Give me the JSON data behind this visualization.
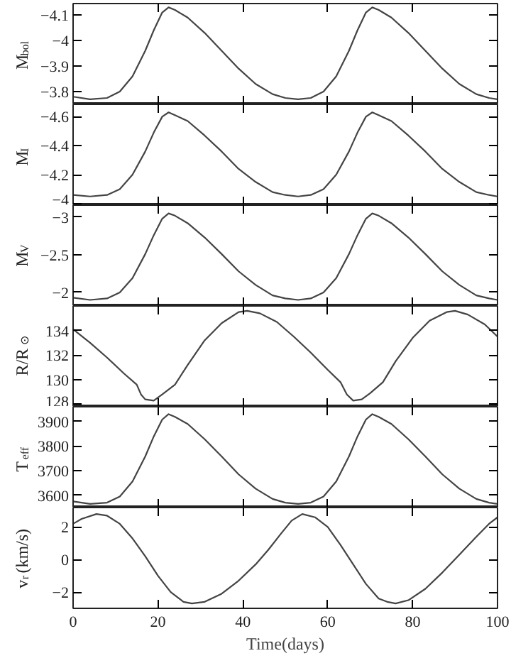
{
  "chart_data": [
    {
      "type": "line",
      "ylabel": "M$_{bol}$",
      "xlim": [
        0,
        100
      ],
      "xticks": [
        0,
        20,
        40,
        60,
        80,
        100
      ],
      "ylim": [
        -3.75,
        -4.145
      ],
      "yticks": [
        -4.1,
        -4,
        -3.9,
        -3.8
      ],
      "tick_labels": "y",
      "x": [
        0,
        4,
        8,
        11,
        14,
        17,
        19,
        21,
        22.5,
        24,
        27,
        31,
        35,
        39,
        43,
        47,
        50,
        53,
        56,
        59,
        62,
        65,
        67,
        69,
        70.5,
        72,
        75,
        79,
        83,
        87,
        91,
        95,
        98,
        100
      ],
      "series": [
        {
          "color": "#444444",
          "values": [
            -3.78,
            -3.77,
            -3.775,
            -3.8,
            -3.86,
            -3.96,
            -4.04,
            -4.11,
            -4.13,
            -4.12,
            -4.09,
            -4.03,
            -3.96,
            -3.89,
            -3.83,
            -3.79,
            -3.775,
            -3.77,
            -3.775,
            -3.8,
            -3.86,
            -3.96,
            -4.04,
            -4.11,
            -4.13,
            -4.12,
            -4.09,
            -4.03,
            -3.96,
            -3.89,
            -3.83,
            -3.79,
            -3.775,
            -3.77
          ]
        }
      ]
    },
    {
      "type": "line",
      "ylabel": "M$_{I}$",
      "xlim": [
        0,
        100
      ],
      "xticks": [
        0,
        20,
        40,
        60,
        80,
        100
      ],
      "ylim": [
        -3.99,
        -4.685
      ],
      "yticks": [
        -4.6,
        -4.4,
        -4.2,
        -4
      ],
      "tick_labels": "y",
      "x": [
        0,
        4,
        8,
        11,
        14,
        17,
        19,
        21,
        22.5,
        24,
        27,
        31,
        35,
        39,
        43,
        47,
        50,
        53,
        56,
        59,
        62,
        65,
        67,
        69,
        70.5,
        72,
        75,
        79,
        83,
        87,
        91,
        95,
        98,
        100
      ],
      "series": [
        {
          "color": "#444444",
          "values": [
            -4.06,
            -4.05,
            -4.06,
            -4.1,
            -4.2,
            -4.36,
            -4.49,
            -4.6,
            -4.63,
            -4.61,
            -4.57,
            -4.47,
            -4.36,
            -4.24,
            -4.15,
            -4.08,
            -4.06,
            -4.05,
            -4.06,
            -4.1,
            -4.2,
            -4.36,
            -4.49,
            -4.6,
            -4.63,
            -4.61,
            -4.57,
            -4.47,
            -4.36,
            -4.24,
            -4.15,
            -4.08,
            -4.06,
            -4.05
          ]
        }
      ]
    },
    {
      "type": "line",
      "ylabel": "M$_{V}$",
      "xlim": [
        0,
        100
      ],
      "xticks": [
        0,
        20,
        40,
        60,
        80,
        100
      ],
      "ylim": [
        -1.82,
        -3.16
      ],
      "yticks": [
        -3,
        -2.5,
        -2
      ],
      "tick_labels": "y",
      "x": [
        0,
        4,
        8,
        11,
        14,
        17,
        19,
        21,
        22.5,
        24,
        27,
        31,
        35,
        39,
        43,
        47,
        50,
        53,
        56,
        59,
        62,
        65,
        67,
        69,
        70.5,
        72,
        75,
        79,
        83,
        87,
        91,
        95,
        98,
        100
      ],
      "series": [
        {
          "color": "#444444",
          "values": [
            -1.93,
            -1.9,
            -1.92,
            -2.0,
            -2.19,
            -2.51,
            -2.76,
            -2.98,
            -3.05,
            -3.02,
            -2.92,
            -2.73,
            -2.51,
            -2.28,
            -2.1,
            -1.96,
            -1.92,
            -1.9,
            -1.92,
            -2.0,
            -2.19,
            -2.51,
            -2.76,
            -2.98,
            -3.05,
            -3.02,
            -2.92,
            -2.73,
            -2.51,
            -2.28,
            -2.1,
            -1.96,
            -1.92,
            -1.9
          ]
        }
      ]
    },
    {
      "type": "line",
      "ylabel": "R/R$_{⊙}$",
      "xlim": [
        0,
        100
      ],
      "xticks": [
        0,
        20,
        40,
        60,
        80,
        100
      ],
      "ylim": [
        127.8,
        136
      ],
      "yticks": [
        128,
        130,
        132,
        134
      ],
      "tick_labels": "y",
      "x": [
        0,
        4,
        8,
        12,
        15,
        16,
        17,
        19,
        21,
        24,
        27,
        31,
        35,
        39,
        41,
        44,
        48,
        52,
        56,
        60,
        63,
        64.5,
        66,
        68,
        70,
        73,
        76,
        80,
        84,
        88,
        90,
        93,
        97,
        100
      ],
      "series": [
        {
          "color": "#444444",
          "values": [
            134.1,
            133.0,
            131.8,
            130.5,
            129.6,
            128.8,
            128.4,
            128.3,
            128.8,
            129.6,
            131.2,
            133.2,
            134.6,
            135.5,
            135.6,
            135.4,
            134.7,
            133.5,
            132.2,
            130.8,
            129.8,
            128.8,
            128.3,
            128.4,
            128.9,
            129.8,
            131.5,
            133.4,
            134.8,
            135.5,
            135.6,
            135.3,
            134.5,
            133.5
          ]
        }
      ]
    },
    {
      "type": "line",
      "ylabel": "T$_{eff}$",
      "xlim": [
        0,
        100
      ],
      "xticks": [
        0,
        20,
        40,
        60,
        80,
        100
      ],
      "ylim": [
        3550,
        3960
      ],
      "yticks": [
        3600,
        3700,
        3800,
        3900
      ],
      "tick_labels": "y",
      "x": [
        0,
        4,
        8,
        11,
        14,
        17,
        19,
        21,
        22.5,
        24,
        27,
        31,
        35,
        39,
        43,
        47,
        50,
        53,
        56,
        59,
        62,
        65,
        67,
        69,
        70.5,
        72,
        75,
        79,
        83,
        87,
        91,
        95,
        98,
        100
      ],
      "series": [
        {
          "color": "#444444",
          "values": [
            3575,
            3565,
            3570,
            3595,
            3656,
            3758,
            3839,
            3908,
            3930,
            3919,
            3890,
            3828,
            3758,
            3685,
            3627,
            3585,
            3570,
            3565,
            3570,
            3595,
            3656,
            3758,
            3839,
            3908,
            3930,
            3919,
            3890,
            3828,
            3758,
            3685,
            3627,
            3585,
            3570,
            3565
          ]
        }
      ]
    },
    {
      "type": "line",
      "ylabel": "v$_{r}$(km/s)",
      "xlabel": "Time(days)",
      "xlim": [
        0,
        100
      ],
      "xticks": [
        0,
        20,
        40,
        60,
        80,
        100
      ],
      "ylim": [
        -3,
        3.2
      ],
      "yticks": [
        -2,
        0,
        2
      ],
      "x": [
        0,
        2,
        5.5,
        8,
        11,
        14,
        17,
        20,
        23,
        26,
        28,
        31,
        35,
        39,
        43,
        46,
        49,
        51.5,
        54,
        57,
        60,
        63,
        66,
        69,
        72,
        74,
        76,
        79,
        83,
        87,
        91,
        95,
        98,
        100
      ],
      "series": [
        {
          "color": "#444444",
          "values": [
            2.2,
            2.5,
            2.8,
            2.7,
            2.2,
            1.3,
            0.2,
            -1.0,
            -2.0,
            -2.6,
            -2.7,
            -2.6,
            -2.1,
            -1.3,
            -0.3,
            0.6,
            1.6,
            2.4,
            2.8,
            2.6,
            2.0,
            0.9,
            -0.3,
            -1.5,
            -2.4,
            -2.6,
            -2.7,
            -2.5,
            -1.8,
            -0.8,
            0.3,
            1.4,
            2.2,
            2.6
          ]
        }
      ]
    }
  ]
}
